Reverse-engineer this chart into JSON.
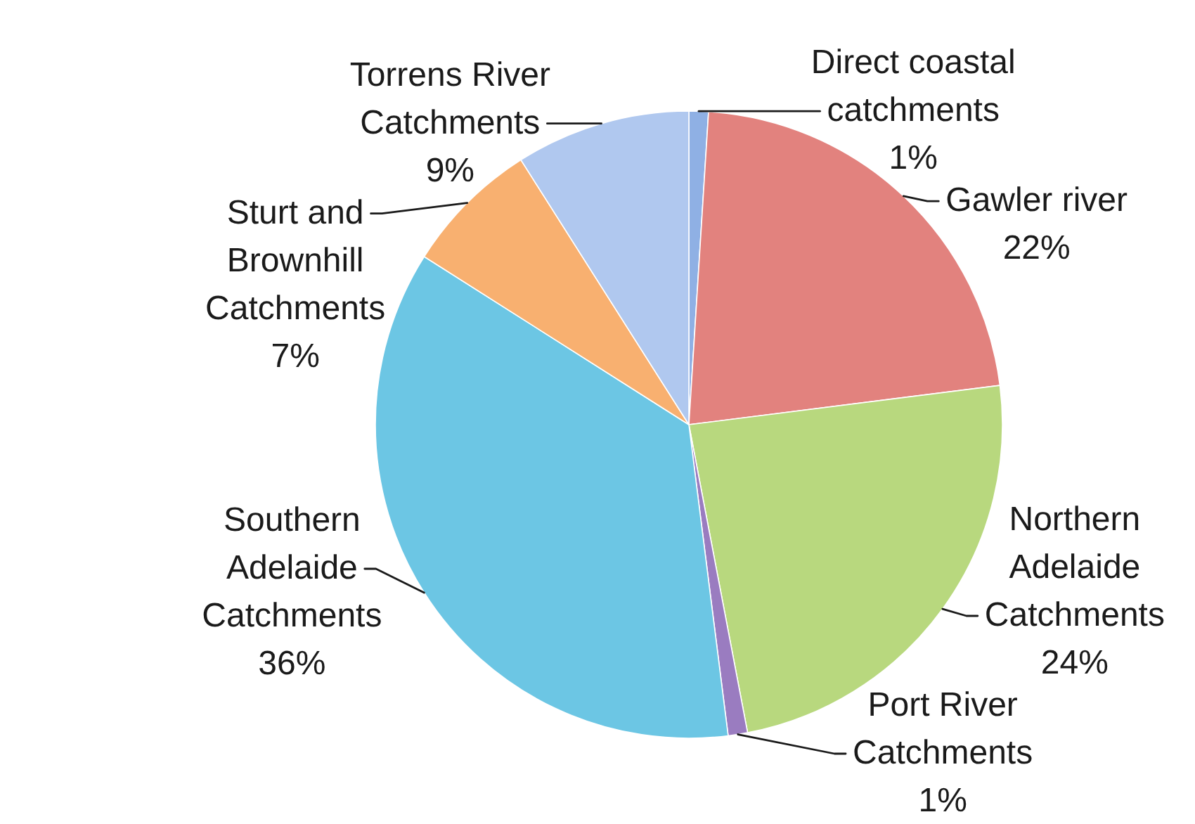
{
  "chart_data": {
    "type": "pie",
    "categories": [
      "Direct coastal catchments",
      "Gawler river",
      "Northern Adelaide Catchments",
      "Port River Catchments",
      "Southern Adelaide Catchments",
      "Sturt and Brownhill Catchments",
      "Torrens River Catchments"
    ],
    "values": [
      1,
      22,
      24,
      1,
      36,
      7,
      9
    ],
    "value_labels": [
      "1%",
      "22%",
      "24%",
      "1%",
      "36%",
      "7%",
      "9%"
    ],
    "colors": [
      "#8fb0e4",
      "#e2827e",
      "#b8d87e",
      "#9a7cc0",
      "#6cc6e4",
      "#f8b070",
      "#b0c8ef"
    ]
  }
}
